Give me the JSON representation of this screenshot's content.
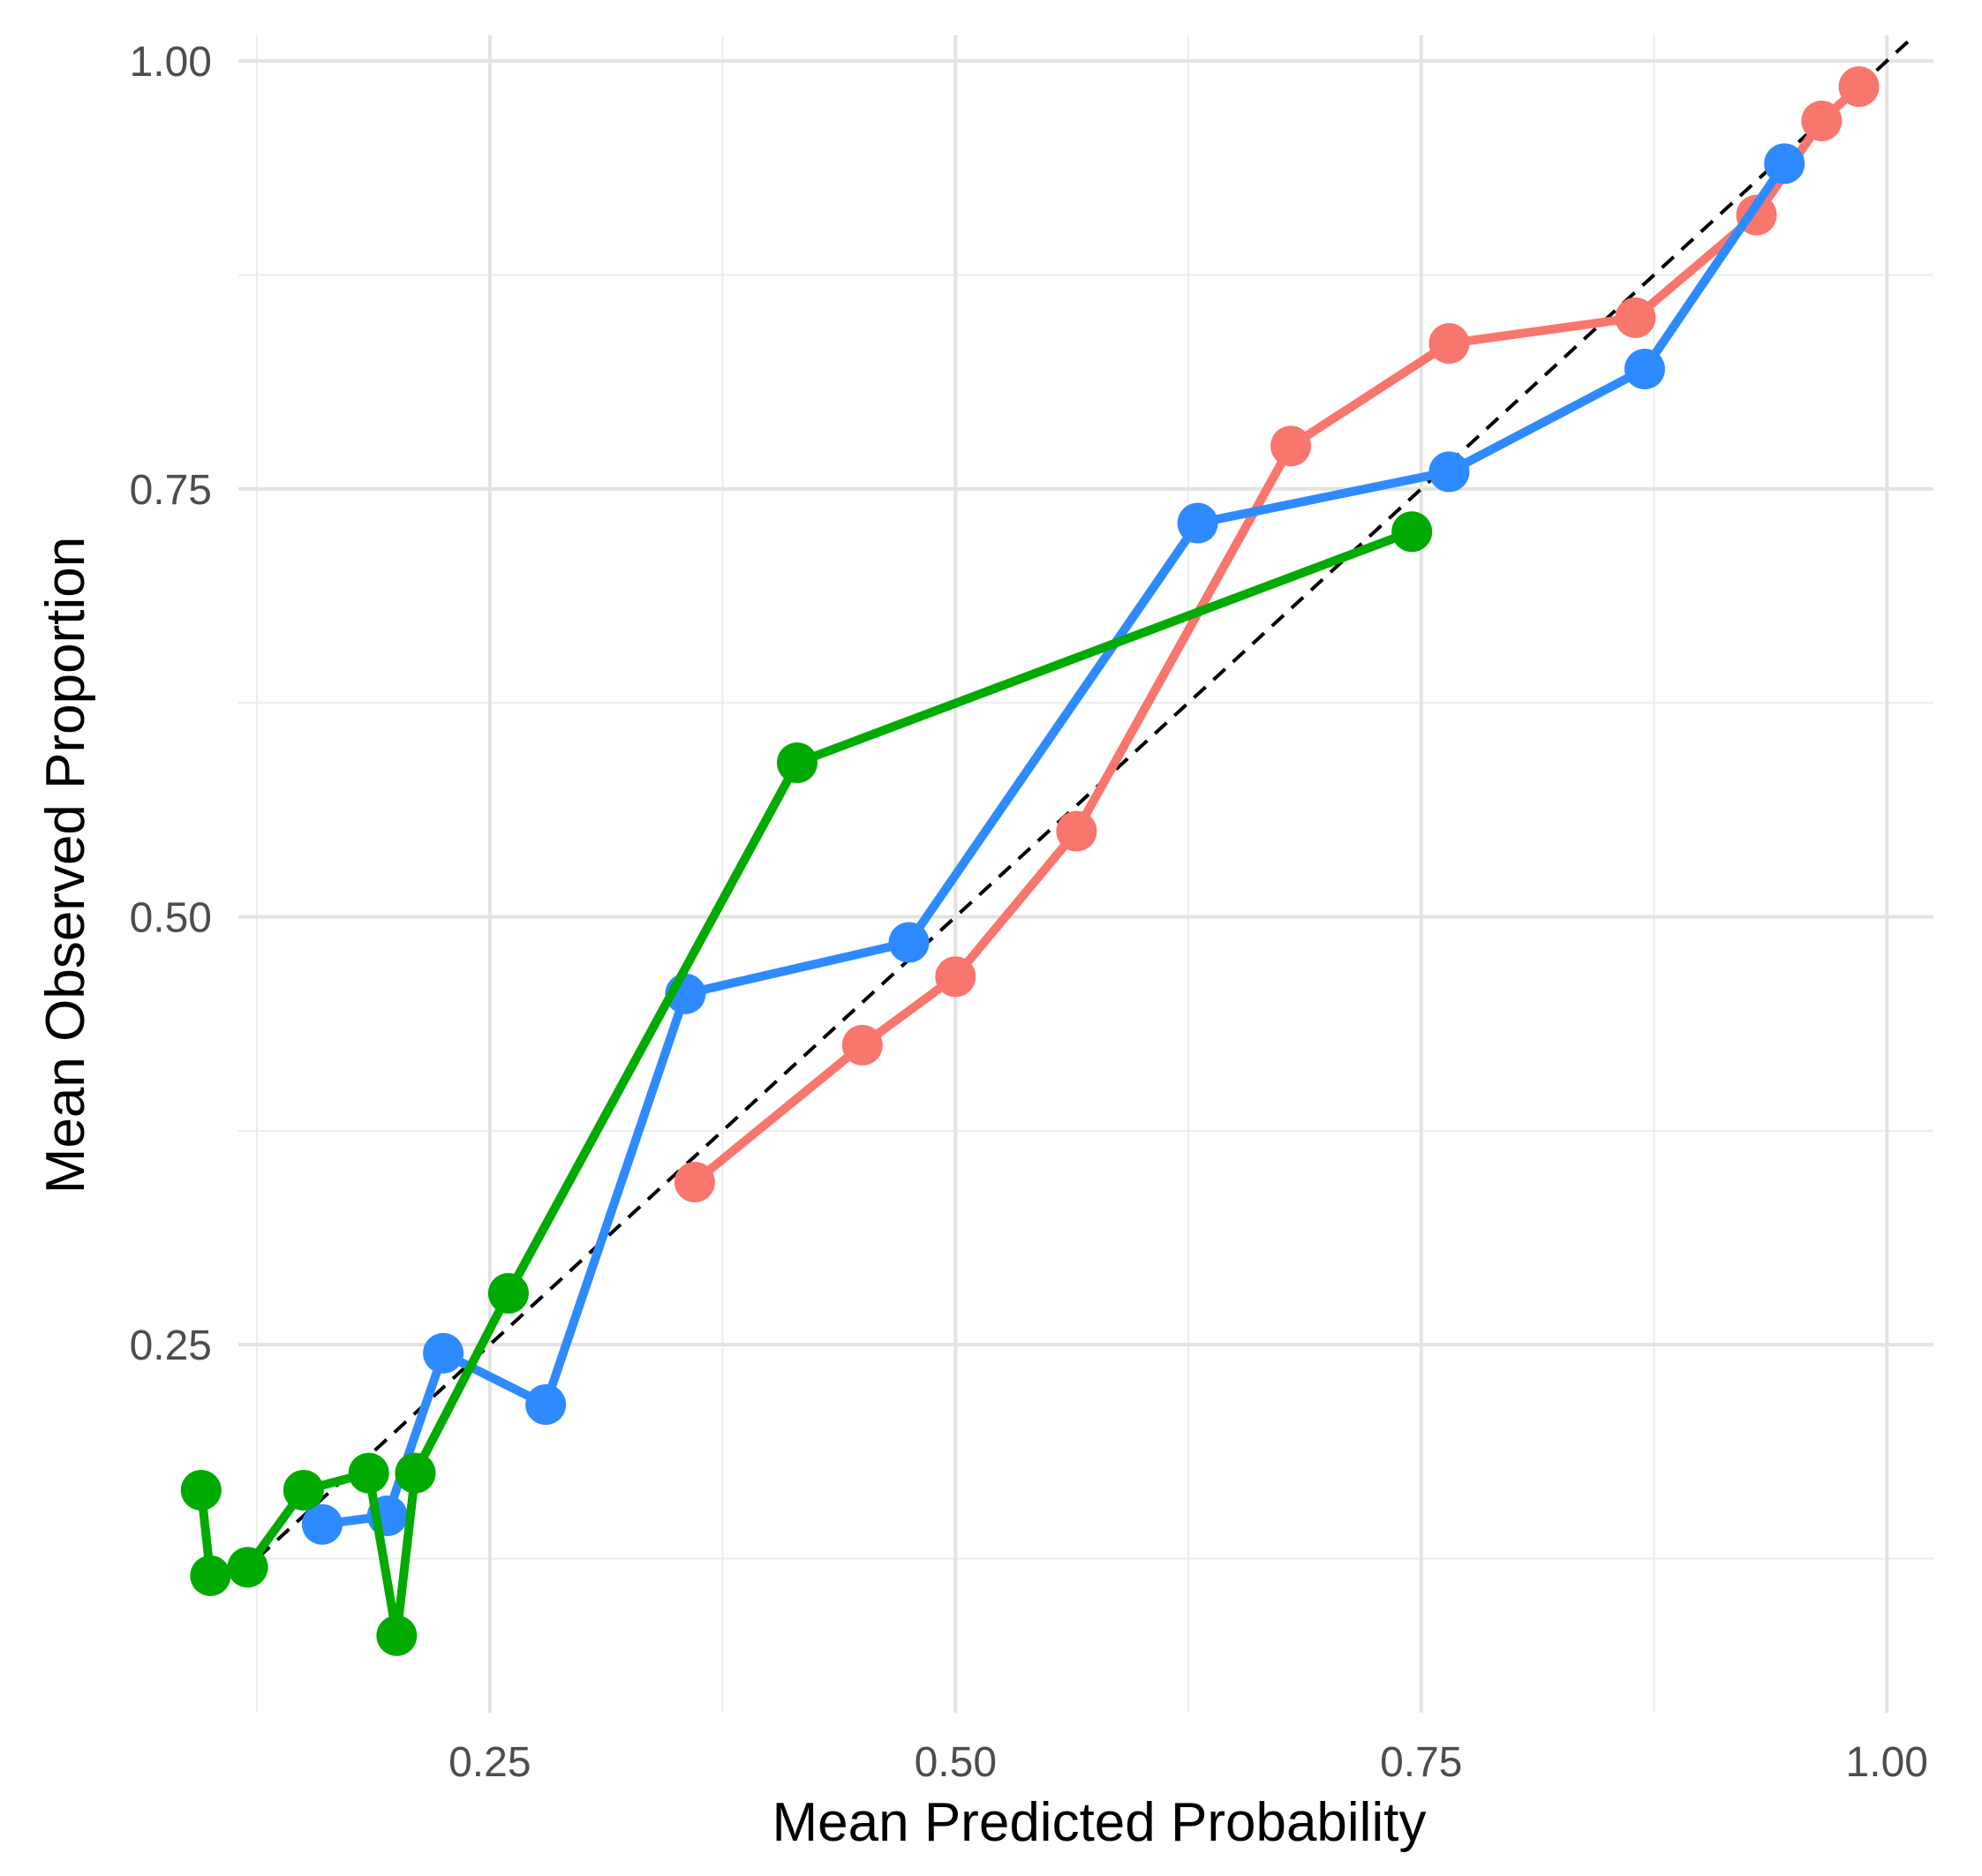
{
  "chart_data": {
    "type": "line",
    "title": "",
    "xlabel": "Mean Predicted Probability",
    "ylabel": "Mean Observed Proportion",
    "xlim": [
      0.115,
      1.025
    ],
    "ylim": [
      0.035,
      1.015
    ],
    "x_ticks": [
      0.25,
      0.5,
      0.75,
      1.0
    ],
    "x_tick_labels": [
      "0.25",
      "0.50",
      "0.75",
      "1.00"
    ],
    "y_ticks": [
      0.25,
      0.5,
      0.75,
      1.0
    ],
    "y_tick_labels": [
      "0.25",
      "0.50",
      "0.75",
      "1.00"
    ],
    "minor_grid_x": [
      0.125,
      0.375,
      0.625,
      0.875
    ],
    "minor_grid_y": [
      0.125,
      0.375,
      0.625,
      0.875
    ],
    "grid": true,
    "legend": "none",
    "reference_line": {
      "type": "diagonal",
      "slope": 1,
      "intercept": 0,
      "style": "dashed",
      "color": "#000000"
    },
    "series": [
      {
        "name": "red",
        "color": "#F8766D",
        "x": [
          0.36,
          0.45,
          0.5,
          0.565,
          0.68,
          0.765,
          0.865,
          0.93,
          0.965,
          0.985
        ],
        "y": [
          0.345,
          0.425,
          0.465,
          0.55,
          0.775,
          0.835,
          0.85,
          0.91,
          0.965,
          0.985
        ]
      },
      {
        "name": "blue",
        "color": "#2E8BFF",
        "x": [
          0.16,
          0.195,
          0.225,
          0.28,
          0.355,
          0.475,
          0.63,
          0.765,
          0.87,
          0.945
        ],
        "y": [
          0.145,
          0.15,
          0.245,
          0.215,
          0.455,
          0.485,
          0.73,
          0.76,
          0.82,
          0.94
        ]
      },
      {
        "name": "green",
        "color": "#00AA00",
        "x": [
          0.095,
          0.1,
          0.12,
          0.15,
          0.185,
          0.2,
          0.21,
          0.26,
          0.415,
          0.745
        ],
        "y": [
          0.165,
          0.115,
          0.12,
          0.165,
          0.175,
          0.08,
          0.175,
          0.28,
          0.59,
          0.725
        ]
      }
    ]
  }
}
